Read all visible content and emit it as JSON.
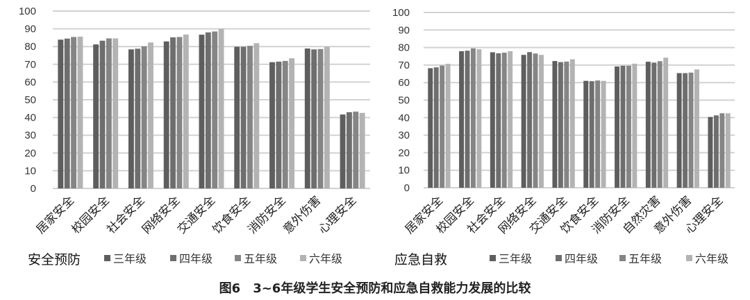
{
  "caption": "图6　3~6年级学生安全预防和应急自救能力发展的比较",
  "legend": [
    "三年级",
    "四年级",
    "五年级",
    "六年级"
  ],
  "colors": [
    "#5e5e5e",
    "#6e6e6e",
    "#858585",
    "#b3b3b3"
  ],
  "chart_data": [
    {
      "type": "bar",
      "title": "安全预防",
      "ylim": [
        0,
        100
      ],
      "yticks": [
        0,
        10,
        20,
        30,
        40,
        50,
        60,
        70,
        80,
        90,
        100
      ],
      "grid": true,
      "legend_position": "bottom",
      "categories": [
        "居家安全",
        "校园安全",
        "社会安全",
        "网络安全",
        "交通安全",
        "饮食安全",
        "消防安全",
        "意外伤害",
        "心理安全"
      ],
      "series": [
        {
          "name": "三年级",
          "values": [
            83.9,
            81.2,
            78.4,
            82.9,
            86.7,
            79.9,
            71.2,
            78.9,
            41.7
          ]
        },
        {
          "name": "四年级",
          "values": [
            84.5,
            83.3,
            78.8,
            85.2,
            88.0,
            79.9,
            71.5,
            78.4,
            43.0
          ]
        },
        {
          "name": "五年级",
          "values": [
            85.4,
            84.6,
            80.1,
            85.4,
            88.5,
            80.4,
            71.9,
            78.6,
            43.3
          ]
        },
        {
          "name": "六年级",
          "values": [
            85.6,
            84.6,
            82.3,
            86.8,
            90.0,
            81.9,
            73.4,
            79.9,
            42.6
          ]
        }
      ]
    },
    {
      "type": "bar",
      "title": "应急自救",
      "ylim": [
        0,
        100
      ],
      "yticks": [
        0,
        10,
        20,
        30,
        40,
        50,
        60,
        70,
        80,
        90,
        100
      ],
      "grid": true,
      "legend_position": "bottom",
      "categories": [
        "居家安全",
        "校园安全",
        "社会安全",
        "网络安全",
        "交通安全",
        "饮食安全",
        "消防安全",
        "自然灾害",
        "意外伤害",
        "心理安全"
      ],
      "series": [
        {
          "name": "三年级",
          "values": [
            68.2,
            77.9,
            77.3,
            75.8,
            72.3,
            61.0,
            69.2,
            71.9,
            65.4,
            40.4
          ]
        },
        {
          "name": "四年级",
          "values": [
            68.7,
            78.2,
            76.7,
            77.4,
            71.7,
            60.8,
            69.6,
            71.4,
            65.4,
            41.3
          ]
        },
        {
          "name": "五年级",
          "values": [
            69.7,
            79.5,
            77.1,
            76.6,
            72.0,
            61.2,
            69.6,
            72.2,
            65.7,
            42.5
          ]
        },
        {
          "name": "六年级",
          "values": [
            70.7,
            79.0,
            77.9,
            75.8,
            73.3,
            61.0,
            70.8,
            74.2,
            67.5,
            42.5
          ]
        }
      ]
    }
  ]
}
